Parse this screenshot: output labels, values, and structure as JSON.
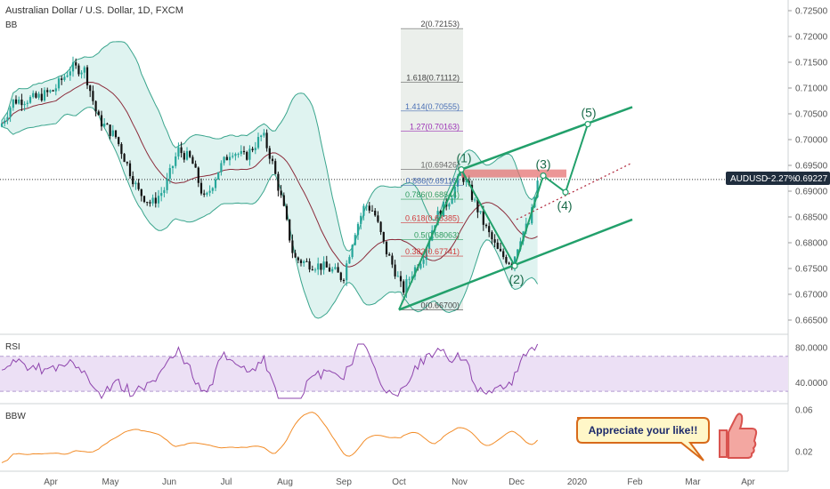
{
  "header": {
    "title": "Australian Dollar / U.S. Dollar, 1D, FXCM",
    "indicator": "BB"
  },
  "price_badge": {
    "symbol": "AUDUSD",
    "change": "−2.27%",
    "value": "0.69227",
    "color": "#1f2d3d"
  },
  "colors": {
    "up": "#26a69a",
    "down": "#111111",
    "bb_fill": "#d7f0ec",
    "bb_band": "#3aa58d",
    "bb_mid": "#8b2b3a",
    "channel": "#22a06b",
    "rsi_line": "#8e44ad",
    "rsi_fill": "#ece0f5",
    "bbw_line": "#f28c28",
    "fib_box": "#e8ece8"
  },
  "chart_data": [
    {
      "type": "candlestick",
      "title": "Australian Dollar / U.S. Dollar, 1D, FXCM",
      "ylim": [
        0.662,
        0.726
      ],
      "y_ticks": [
        "0.72500",
        "0.72000",
        "0.71500",
        "0.71000",
        "0.70500",
        "0.70000",
        "0.69500",
        "0.69000",
        "0.68500",
        "0.68000",
        "0.67500",
        "0.67000",
        "0.66500"
      ],
      "x_labels": [
        "Apr",
        "May",
        "Jun",
        "Jul",
        "Aug",
        "Sep",
        "Oct",
        "Nov",
        "Dec",
        "2020",
        "Feb",
        "Mar",
        "Apr"
      ],
      "last_price": 0.69227,
      "fib_levels": [
        {
          "label": "2(0.72153)",
          "value": 0.72153,
          "color": "#444444"
        },
        {
          "label": "1.618(0.71112)",
          "value": 0.71112,
          "color": "#444444"
        },
        {
          "label": "1.414(0.70555)",
          "value": 0.70555,
          "color": "#4a6fb5"
        },
        {
          "label": "1.27(0.70163)",
          "value": 0.70163,
          "color": "#9b30b5"
        },
        {
          "label": "1(0.69426)",
          "value": 0.69426,
          "color": "#666666"
        },
        {
          "label": "0.886(0.69116)",
          "value": 0.69116,
          "color": "#4a6fb5"
        },
        {
          "label": "0.786(0.68844)",
          "value": 0.68844,
          "color": "#2e9b5e"
        },
        {
          "label": "0.618(0.68385)",
          "value": 0.68385,
          "color": "#d13b3b"
        },
        {
          "label": "0.5(0.68063)",
          "value": 0.68063,
          "color": "#2e9b5e"
        },
        {
          "label": "0.382(0.67741)",
          "value": 0.67741,
          "color": "#d13b3b"
        },
        {
          "label": "0(0.66700)",
          "value": 0.667,
          "color": "#444444"
        }
      ],
      "wave_labels": [
        "(1)",
        "(2)",
        "(3)",
        "(4)",
        "(5)"
      ],
      "indicators": [
        "Bollinger Bands"
      ]
    },
    {
      "type": "line",
      "title": "RSI",
      "y_ticks": [
        "80.0000",
        "40.0000"
      ],
      "bands": [
        70,
        30
      ]
    },
    {
      "type": "line",
      "title": "BBW",
      "y_ticks": [
        "0.06",
        "0.02"
      ]
    }
  ],
  "callout": {
    "text": "Appreciate your like!!",
    "icon": "thumbs-up-icon"
  }
}
